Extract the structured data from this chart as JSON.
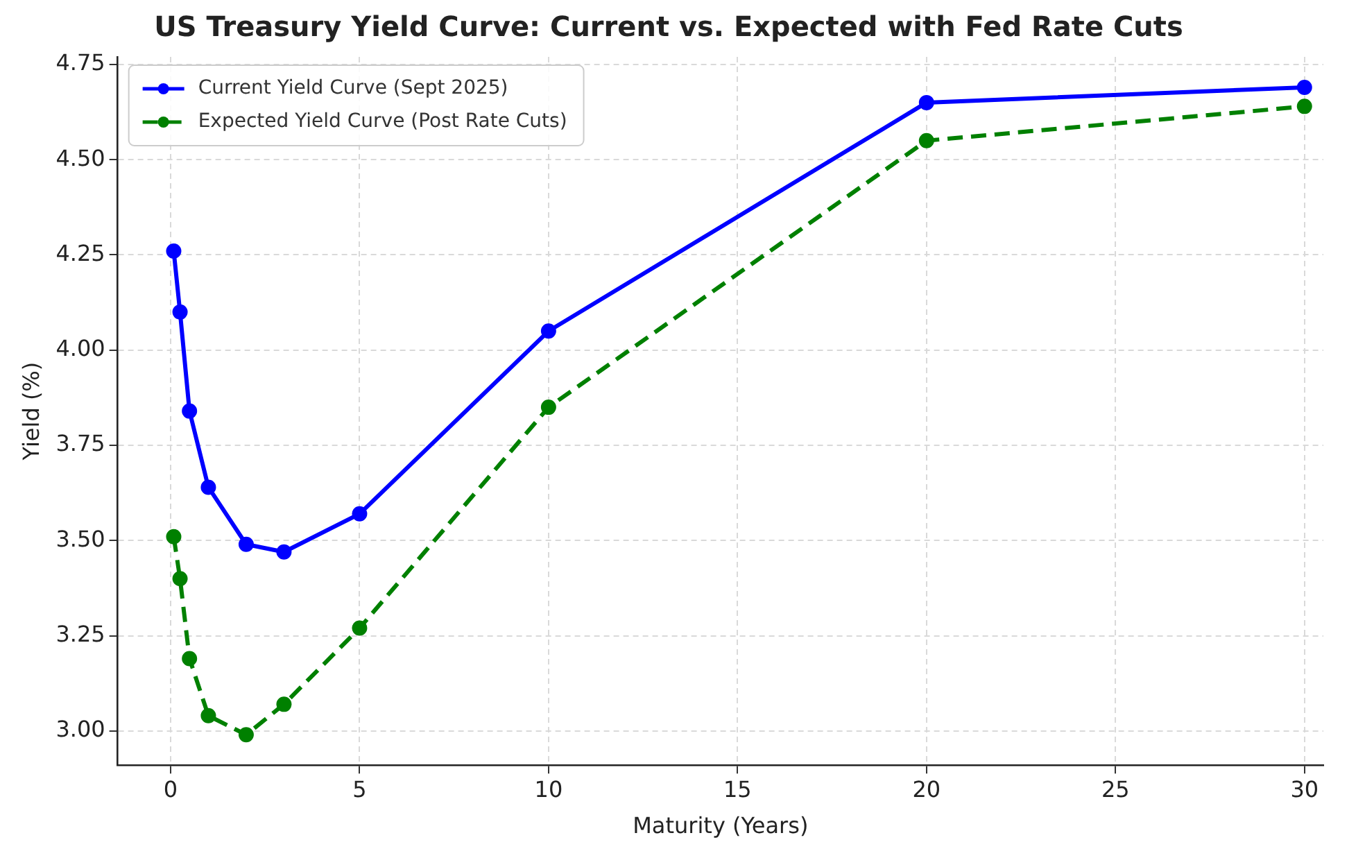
{
  "chart_data": {
    "type": "line",
    "title": "US Treasury Yield Curve: Current vs. Expected with Fed Rate Cuts",
    "xlabel": "Maturity (Years)",
    "ylabel": "Yield (%)",
    "x": [
      0.083,
      0.25,
      0.5,
      1,
      2,
      3,
      5,
      10,
      20,
      30
    ],
    "series": [
      {
        "name": "Current Yield Curve (Sept 2025)",
        "color": "#0000ff",
        "line_style": "solid",
        "values": [
          4.26,
          4.1,
          3.84,
          3.64,
          3.49,
          3.47,
          3.57,
          4.05,
          4.65,
          4.69
        ]
      },
      {
        "name": "Expected Yield Curve (Post Rate Cuts)",
        "color": "#008000",
        "line_style": "dashed",
        "values": [
          3.51,
          3.4,
          3.19,
          3.04,
          2.99,
          3.07,
          3.27,
          3.85,
          4.55,
          4.64
        ]
      }
    ],
    "xlim": [
      -1.4,
      30.5
    ],
    "xticks": [
      0,
      5,
      10,
      15,
      20,
      25,
      30
    ],
    "ylim": [
      2.91,
      4.77
    ],
    "yticks": [
      {
        "value": 3,
        "label": "3.00"
      },
      {
        "value": 3.25,
        "label": "3.25"
      },
      {
        "value": 3.5,
        "label": "3.50"
      },
      {
        "value": 3.75,
        "label": "3.75"
      },
      {
        "value": 4,
        "label": "4.00"
      },
      {
        "value": 4.25,
        "label": "4.25"
      },
      {
        "value": 4.5,
        "label": "4.50"
      },
      {
        "value": 4.75,
        "label": "4.75"
      }
    ],
    "grid": true,
    "legend": "top left",
    "marker": "circle"
  }
}
